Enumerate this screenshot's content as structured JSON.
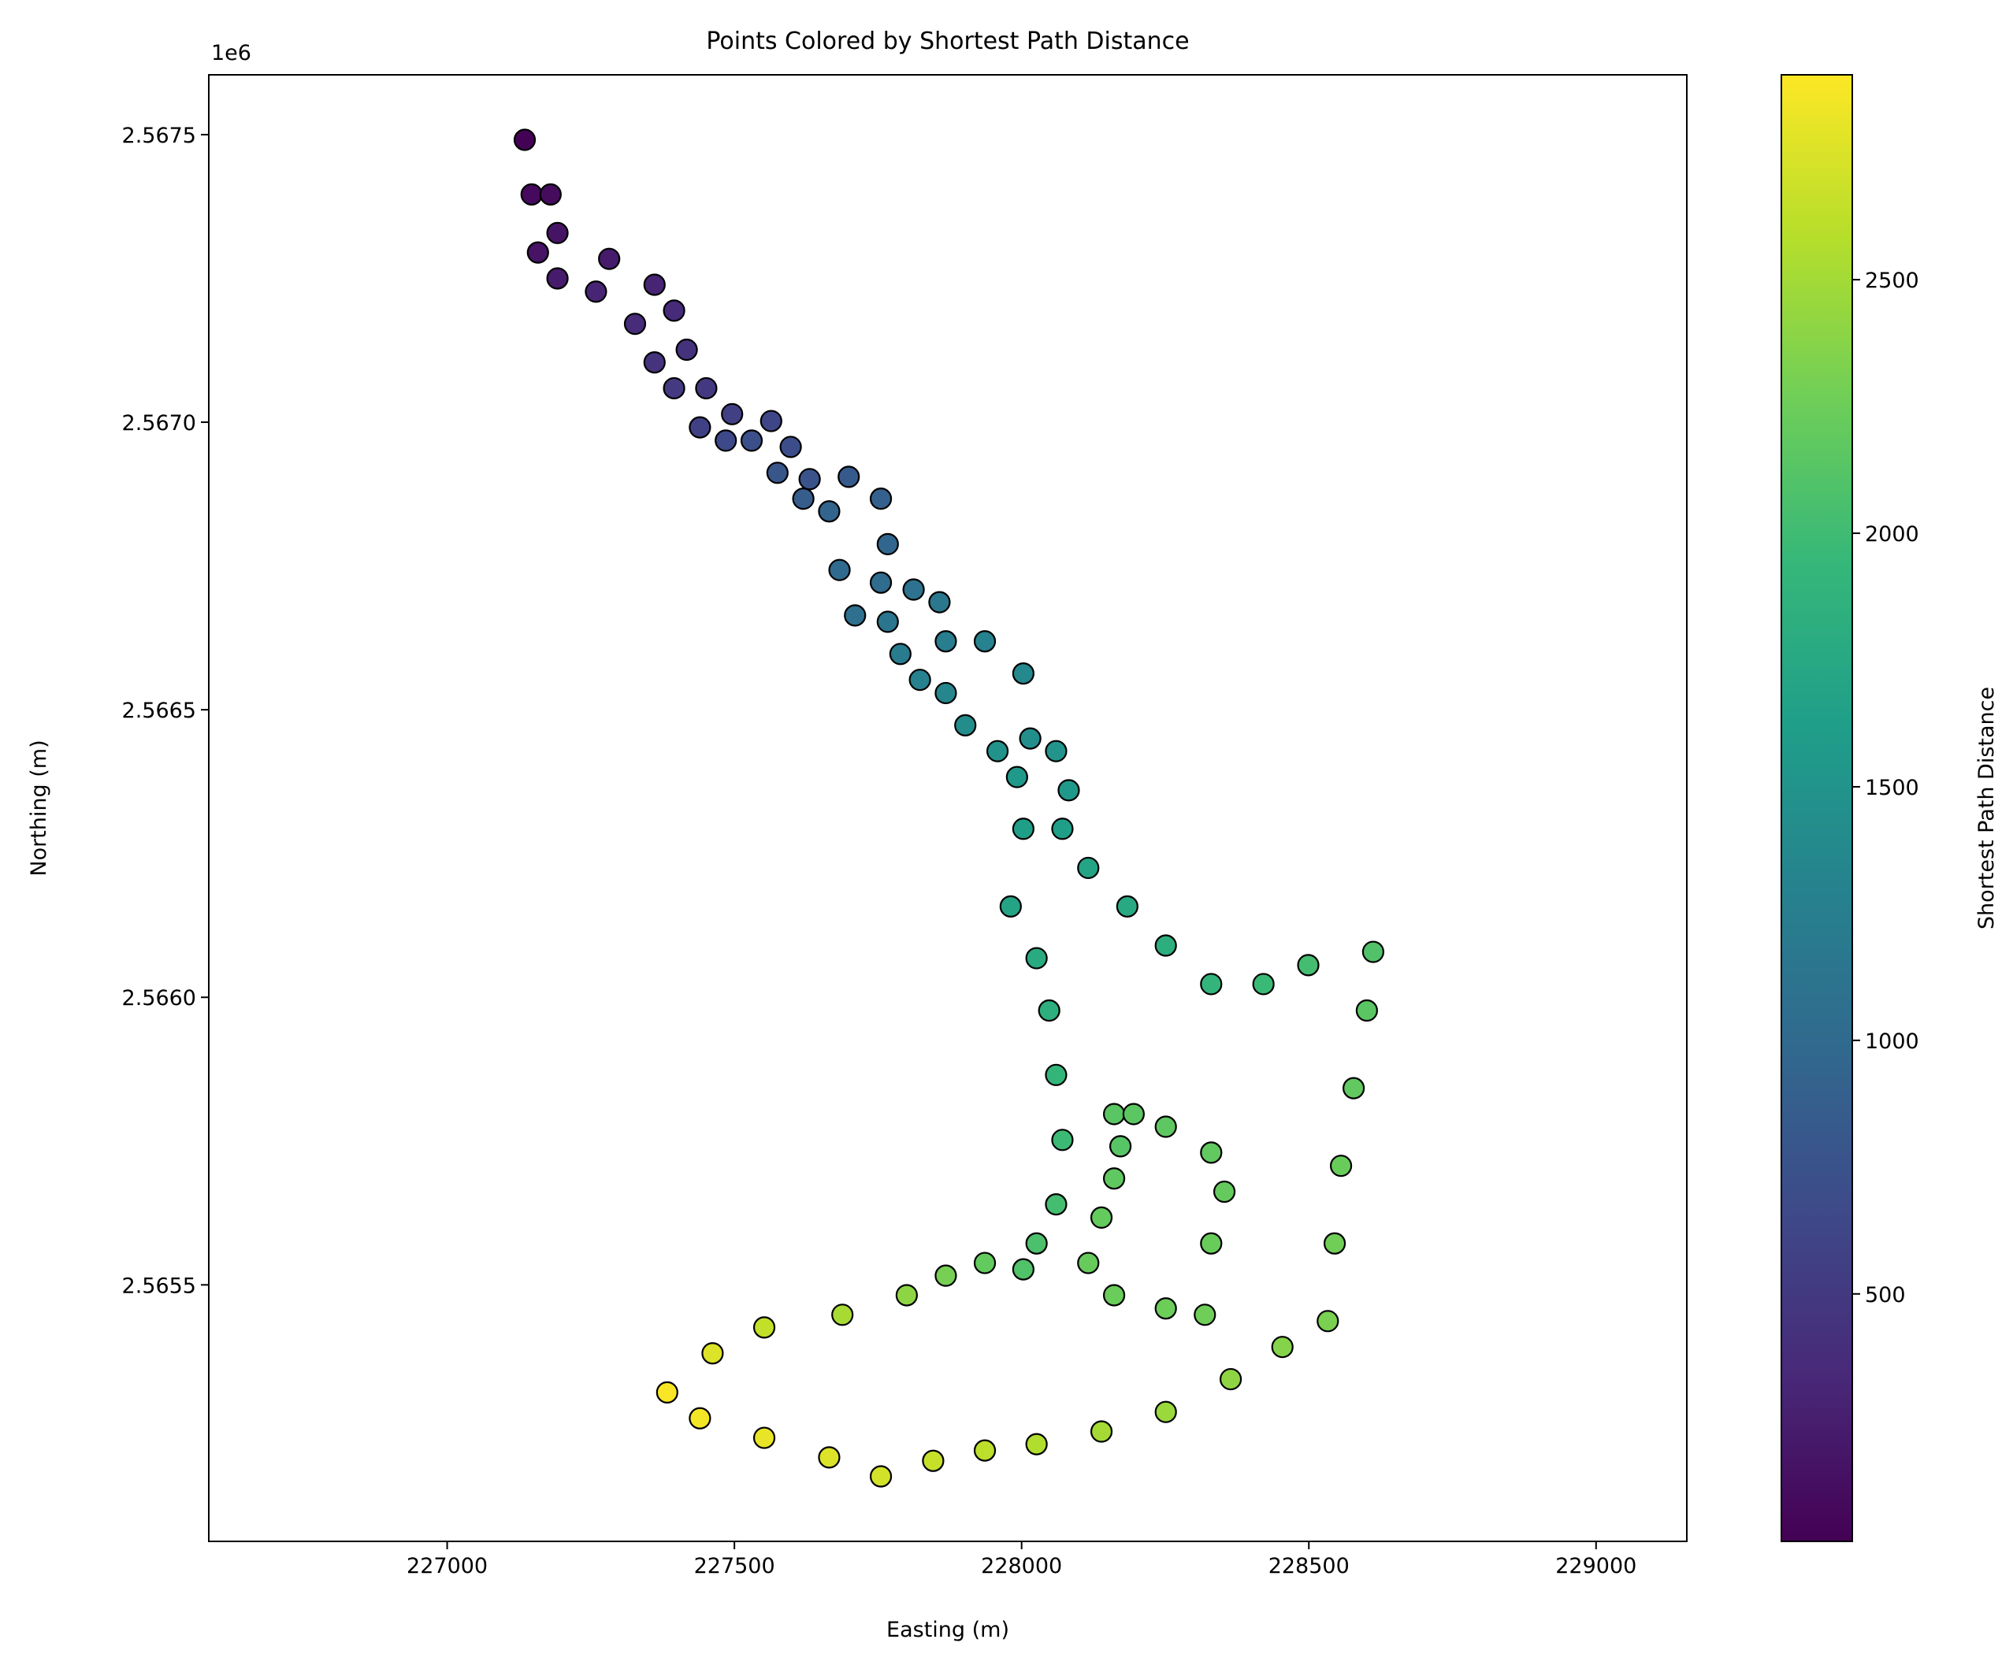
{
  "chart_data": {
    "type": "scatter",
    "title": "Points Colored by Shortest Path Distance",
    "xlabel": "Easting (m)",
    "ylabel": "Northing (m)",
    "y_offset_label": "1e6",
    "colormap": "viridis",
    "x": [
      227135,
      227147,
      227158,
      227192,
      227259,
      227327,
      227361,
      227395,
      227440,
      227485,
      227530,
      227575,
      227620,
      227665,
      227683,
      227710,
      227767,
      227789,
      227823,
      227868,
      227902,
      227958,
      227992,
      228003,
      227981,
      228026,
      228048,
      228060,
      228071,
      228060,
      228026,
      228003,
      227936,
      227868,
      227800,
      227688,
      227552,
      227462,
      227383,
      227180,
      227192,
      227282,
      227361,
      227395,
      227417,
      227451,
      227496,
      227564,
      227598,
      227631,
      227699,
      227755,
      227767,
      227755,
      227812,
      227857,
      227868,
      227936,
      228003,
      228015,
      228060,
      228082,
      228071,
      228116,
      228184,
      228251,
      228330,
      228421,
      228499,
      228612,
      228601,
      228578,
      228556,
      228545,
      228533,
      228454,
      228364,
      228251,
      228139,
      228026,
      227936,
      227846,
      227755,
      227665,
      227552,
      227440,
      228172,
      228161,
      228195,
      228251,
      228330,
      228353,
      228330,
      228319,
      228251,
      228161,
      228116,
      228139,
      228161
    ],
    "y": [
      2567491,
      2567396,
      2567295,
      2567250,
      2567227,
      2567171,
      2567104,
      2567059,
      2566991,
      2566968,
      2566968,
      2566912,
      2566867,
      2566845,
      2566743,
      2566664,
      2566653,
      2566597,
      2566552,
      2566529,
      2566473,
      2566428,
      2566383,
      2566293,
      2566158,
      2566068,
      2565977,
      2565865,
      2565752,
      2565640,
      2565572,
      2565527,
      2565538,
      2565516,
      2565482,
      2565448,
      2565426,
      2565381,
      2565313,
      2567396,
      2567329,
      2567284,
      2567239,
      2567194,
      2567126,
      2567059,
      2567014,
      2567002,
      2566957,
      2566901,
      2566905,
      2566867,
      2566788,
      2566721,
      2566709,
      2566687,
      2566619,
      2566619,
      2566563,
      2566450,
      2566428,
      2566360,
      2566293,
      2566225,
      2566158,
      2566090,
      2566023,
      2566023,
      2566056,
      2566079,
      2565977,
      2565842,
      2565707,
      2565572,
      2565437,
      2565392,
      2565336,
      2565279,
      2565245,
      2565223,
      2565212,
      2565194,
      2565167,
      2565200,
      2565234,
      2565268,
      2565741,
      2565797,
      2565797,
      2565775,
      2565730,
      2565662,
      2565572,
      2565448,
      2565459,
      2565482,
      2565538,
      2565617,
      2565685
    ],
    "values": [
      20,
      90,
      160,
      230,
      300,
      370,
      440,
      510,
      580,
      650,
      720,
      790,
      860,
      930,
      1000,
      1070,
      1140,
      1210,
      1280,
      1350,
      1420,
      1490,
      1560,
      1630,
      1700,
      1770,
      1840,
      1910,
      1980,
      2030,
      2070,
      2100,
      2200,
      2300,
      2400,
      2520,
      2640,
      2760,
      2880,
      100,
      165,
      230,
      300,
      365,
      430,
      500,
      565,
      630,
      700,
      765,
      830,
      900,
      965,
      1030,
      1100,
      1165,
      1230,
      1300,
      1365,
      1430,
      1500,
      1565,
      1630,
      1700,
      1765,
      1830,
      1900,
      1965,
      2030,
      2100,
      2150,
      2190,
      2230,
      2270,
      2310,
      2360,
      2410,
      2460,
      2510,
      2560,
      2610,
      2660,
      2710,
      2760,
      2810,
      2860,
      2130,
      2150,
      2160,
      2170,
      2190,
      2210,
      2230,
      2260,
      2250,
      2240,
      2220,
      2200,
      2180
    ],
    "xlim": [
      226585,
      229158
    ],
    "ylim": [
      2565054,
      2567604
    ],
    "xticks": [
      227000,
      227500,
      228000,
      228500,
      229000
    ],
    "yticks": [
      {
        "value": 2565500,
        "label": "2.5655"
      },
      {
        "value": 2566000,
        "label": "2.5660"
      },
      {
        "value": 2566500,
        "label": "2.5665"
      },
      {
        "value": 2567000,
        "label": "2.5670"
      },
      {
        "value": 2567500,
        "label": "2.5675"
      }
    ],
    "colorbar": {
      "label": "Shortest Path Distance",
      "clim": [
        12,
        2904
      ],
      "ticks": [
        500,
        1000,
        1500,
        2000,
        2500
      ]
    }
  }
}
